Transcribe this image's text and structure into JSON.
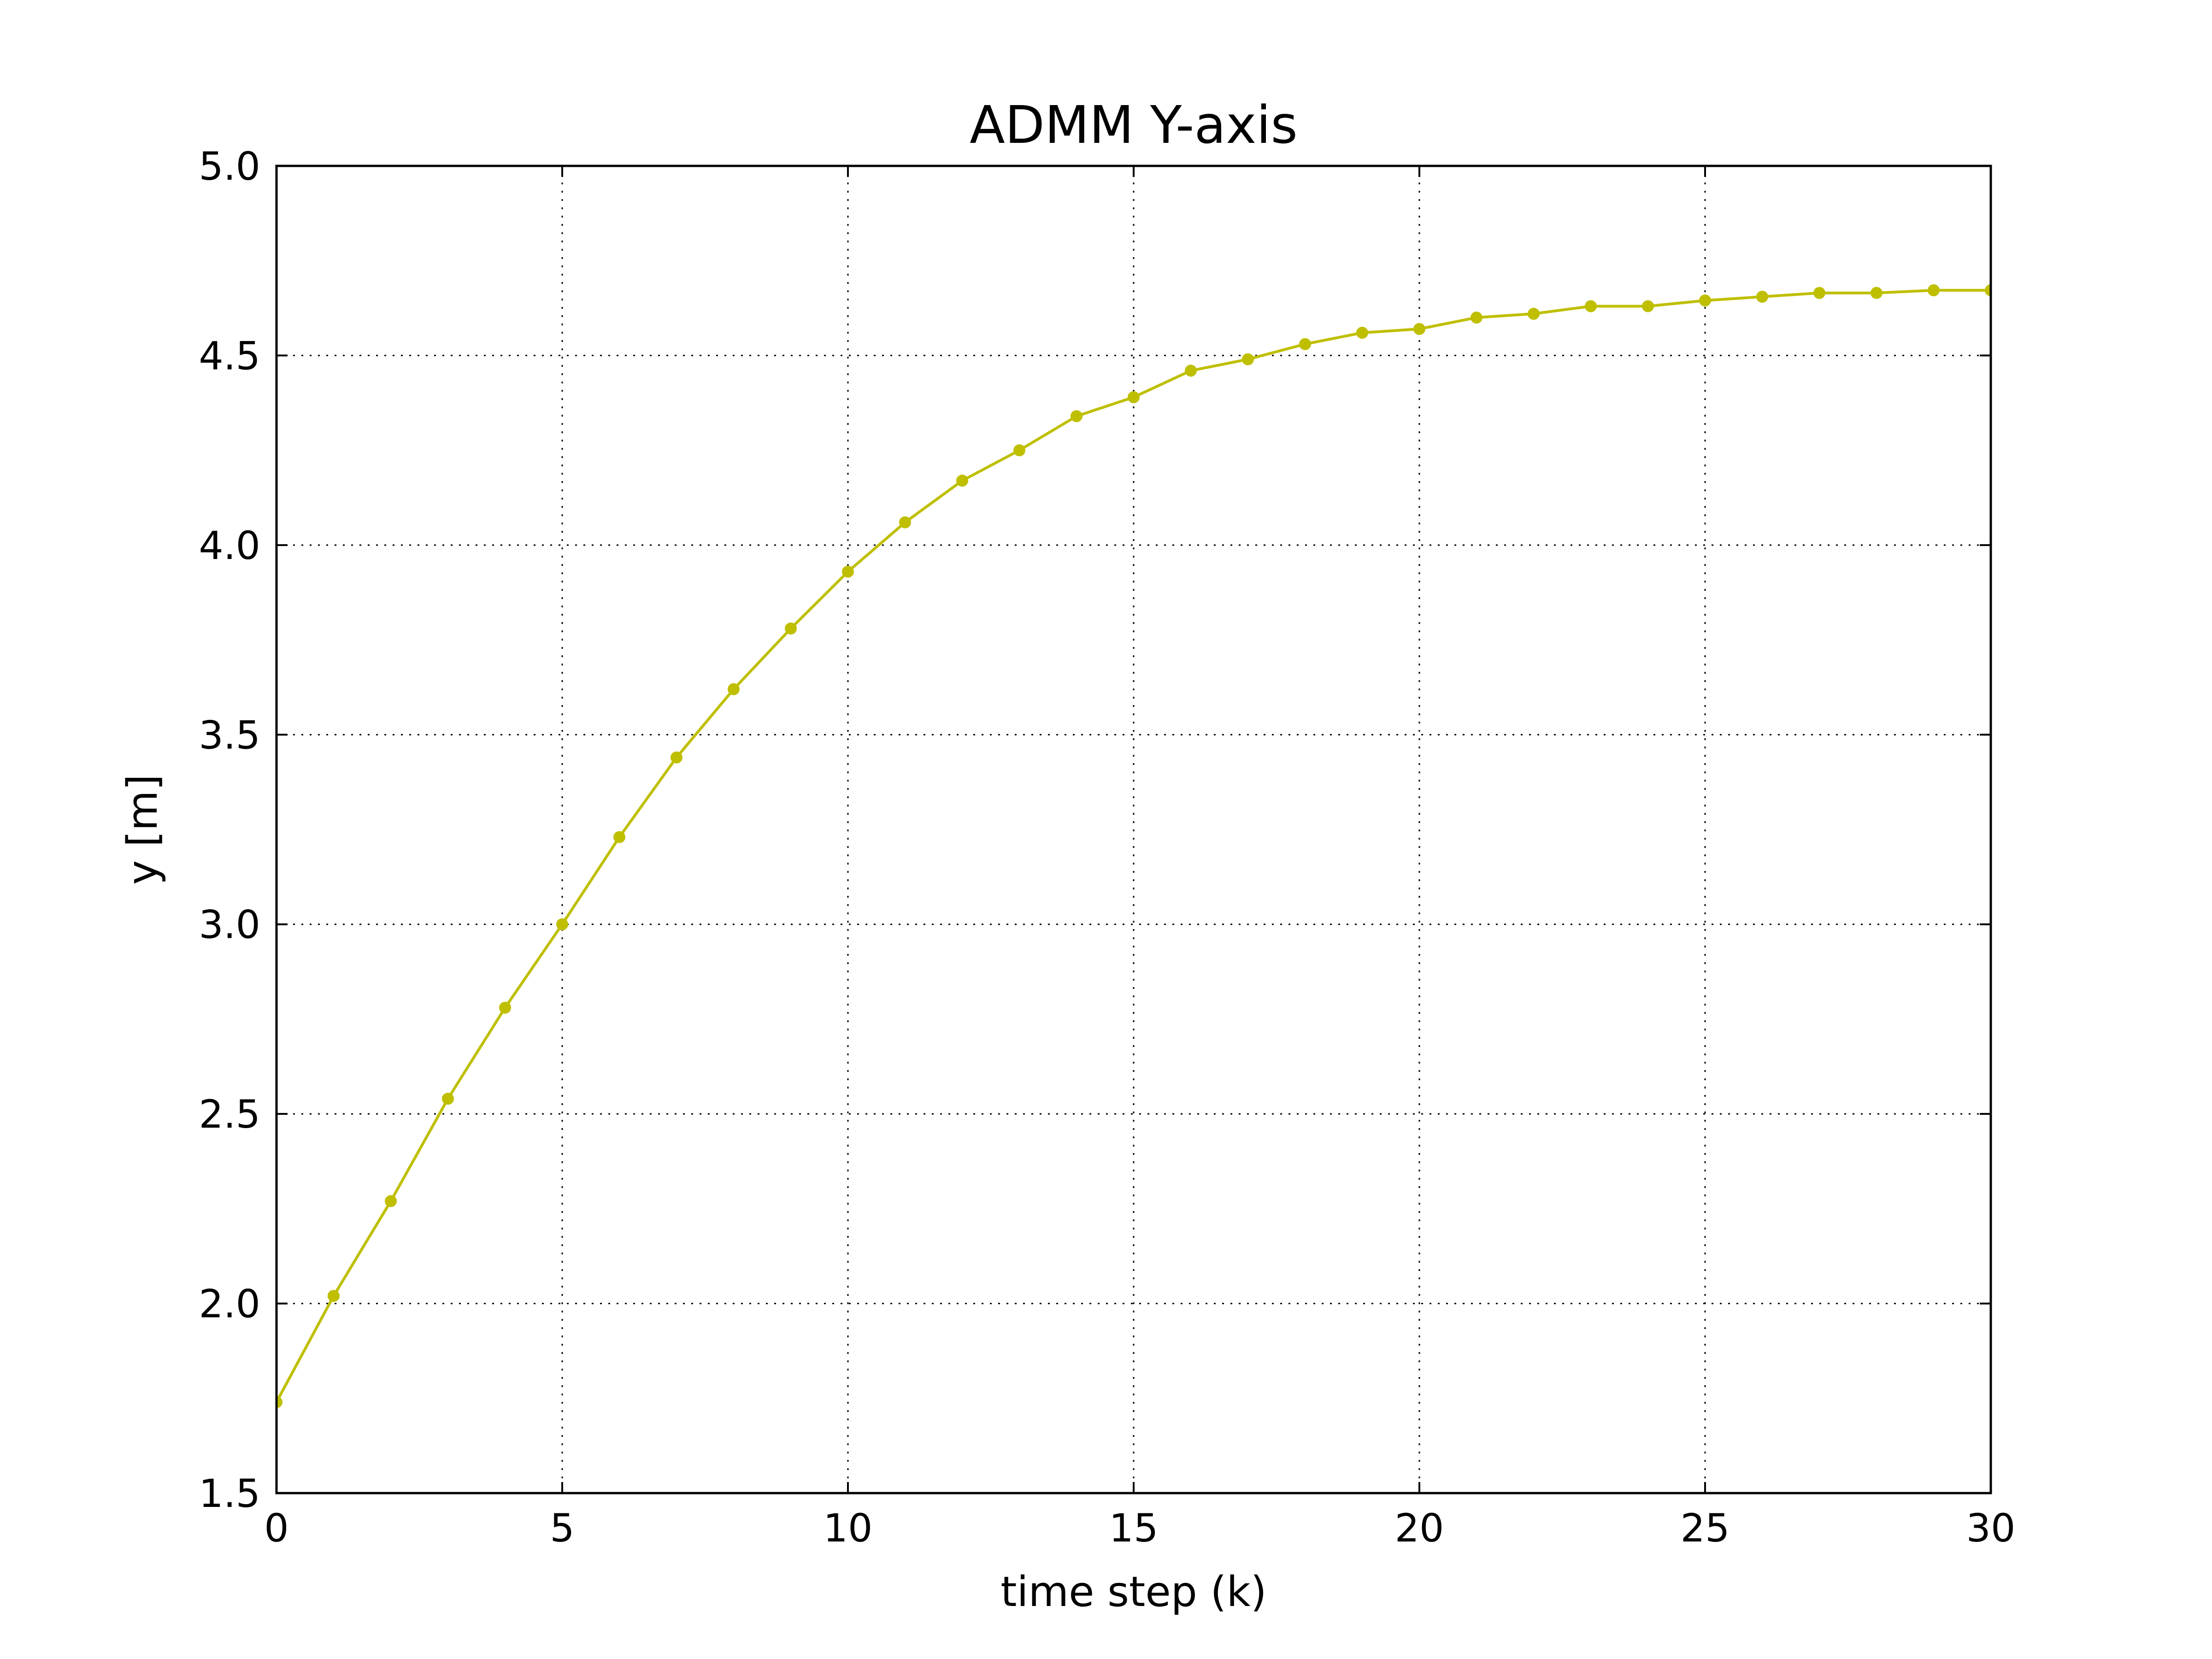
{
  "chart_data": {
    "type": "line",
    "title": "ADMM Y-axis",
    "xlabel": "time step (k)",
    "ylabel": "y [m]",
    "xlim": [
      0,
      30
    ],
    "ylim": [
      1.5,
      5.0
    ],
    "xticks": [
      "0",
      "5",
      "10",
      "15",
      "20",
      "25",
      "30"
    ],
    "yticks": [
      "1.5",
      "2.0",
      "2.5",
      "3.0",
      "3.5",
      "4.0",
      "4.5",
      "5.0"
    ],
    "grid": true,
    "grid_style": "dotted",
    "series": [
      {
        "color": "#bfbf00",
        "marker": "circle",
        "x": [
          0,
          1,
          2,
          3,
          4,
          5,
          6,
          7,
          8,
          9,
          10,
          11,
          12,
          13,
          14,
          15,
          16,
          17,
          18,
          19,
          20,
          21,
          22,
          23,
          24,
          25,
          26,
          27,
          28,
          29,
          30
        ],
        "y": [
          1.74,
          2.02,
          2.27,
          2.54,
          2.78,
          3.0,
          3.23,
          3.44,
          3.62,
          3.78,
          3.93,
          4.06,
          4.17,
          4.25,
          4.34,
          4.39,
          4.46,
          4.49,
          4.53,
          4.56,
          4.57,
          4.6,
          4.61,
          4.63,
          4.63,
          4.645,
          4.655,
          4.665,
          4.665,
          4.672,
          4.672
        ]
      }
    ]
  }
}
